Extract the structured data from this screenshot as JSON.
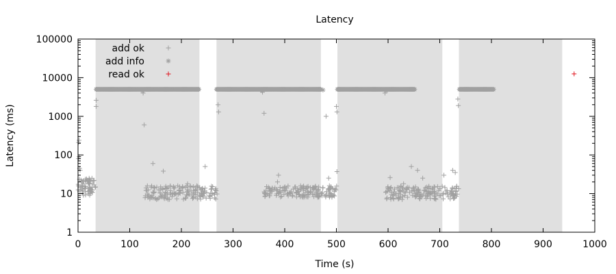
{
  "chart_data": {
    "type": "scatter",
    "title": "Latency",
    "xlabel": "Time (s)",
    "ylabel": "Latency (ms)",
    "xlim": [
      0,
      1000
    ],
    "ylim": [
      1,
      100000
    ],
    "yscale": "log",
    "xticks": [
      0,
      100,
      200,
      300,
      400,
      500,
      600,
      700,
      800,
      900,
      1000
    ],
    "yticks": [
      1,
      10,
      100,
      1000,
      10000,
      100000
    ],
    "ytick_labels": [
      "1",
      "10",
      "100",
      "1000",
      "10000",
      "100000"
    ],
    "grid": false,
    "legend_position": "top-left",
    "shaded_intervals": [
      [
        34,
        235
      ],
      [
        268,
        470
      ],
      [
        502,
        705
      ],
      [
        737,
        937
      ]
    ],
    "shade_color": "#e0e0e0",
    "series": [
      {
        "name": "add ok",
        "marker": "plus",
        "color": "#a0a0a0",
        "clusters": [
          {
            "x_range": [
              0,
              34
            ],
            "y_range": [
              9,
              25
            ],
            "count": 70
          },
          {
            "x_range": [
              128,
              270
            ],
            "y_range": [
              7,
              16
            ],
            "count": 160
          },
          {
            "x_range": [
              360,
              502
            ],
            "y_range": [
              8,
              16
            ],
            "count": 170
          },
          {
            "x_range": [
              595,
              737
            ],
            "y_range": [
              7,
              16
            ],
            "count": 170
          }
        ],
        "points": [
          [
            1,
            80
          ],
          [
            1,
            210
          ],
          [
            2,
            240
          ],
          [
            2,
            90
          ],
          [
            3,
            45
          ],
          [
            4,
            40
          ],
          [
            35,
            2600
          ],
          [
            35,
            1800
          ],
          [
            126,
            4000
          ],
          [
            128,
            600
          ],
          [
            145,
            60
          ],
          [
            165,
            38
          ],
          [
            193,
            16
          ],
          [
            212,
            18
          ],
          [
            246,
            50
          ],
          [
            271,
            2000
          ],
          [
            272,
            1300
          ],
          [
            357,
            4200
          ],
          [
            360,
            1200
          ],
          [
            386,
            20
          ],
          [
            388,
            30
          ],
          [
            480,
            1000
          ],
          [
            500,
            1800
          ],
          [
            501,
            1300
          ],
          [
            501,
            37
          ],
          [
            485,
            25
          ],
          [
            594,
            4000
          ],
          [
            604,
            26
          ],
          [
            630,
            18
          ],
          [
            645,
            50
          ],
          [
            657,
            40
          ],
          [
            667,
            25
          ],
          [
            708,
            30
          ],
          [
            725,
            40
          ],
          [
            730,
            35
          ],
          [
            735,
            2800
          ],
          [
            736,
            1900
          ]
        ]
      },
      {
        "name": "add info",
        "marker": "star",
        "color": "#a0a0a0",
        "runs": [
          {
            "x_range": [
              35,
              235
            ],
            "y": 5000
          },
          {
            "x_range": [
              268,
              470
            ],
            "y": 5000
          },
          {
            "x_range": [
              502,
              652
            ],
            "y": 5000
          },
          {
            "x_range": [
              738,
              805
            ],
            "y": 5000
          }
        ],
        "points": [
          [
            125,
            4600
          ],
          [
            356,
            4600
          ],
          [
            474,
            4800
          ],
          [
            596,
            4600
          ]
        ]
      },
      {
        "name": "read ok",
        "marker": "plus",
        "color": "#e0121b",
        "points": [
          [
            960,
            12500
          ]
        ]
      }
    ]
  }
}
